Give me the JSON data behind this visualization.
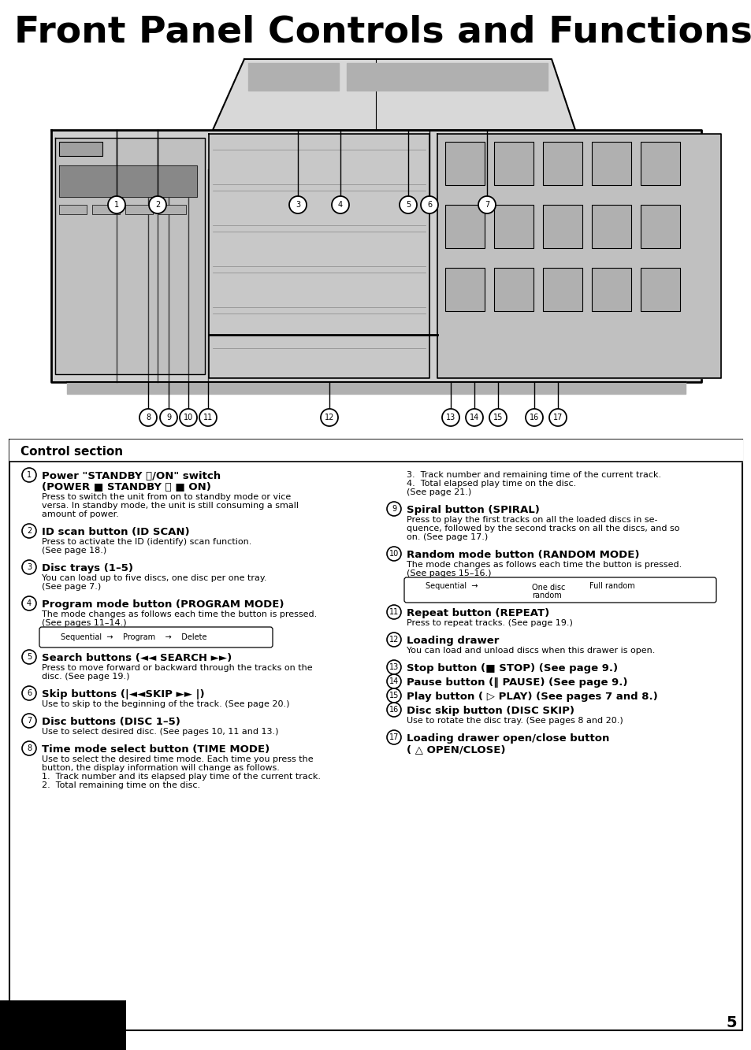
{
  "title": "Front Panel Controls and Functions",
  "bg_color": "#ffffff",
  "control_section_label": "Control section",
  "page_number": "5"
}
